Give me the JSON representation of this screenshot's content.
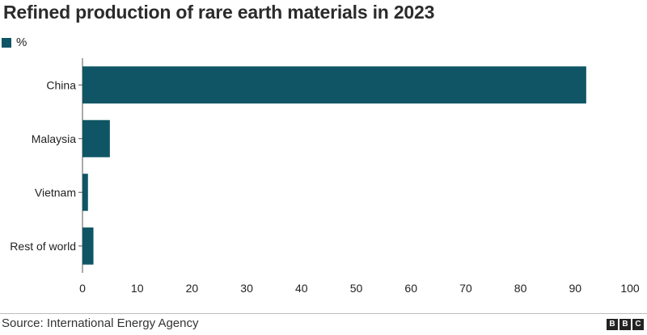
{
  "chart_data": {
    "type": "bar",
    "orientation": "horizontal",
    "title": "Refined production of rare earth materials in 2023",
    "legend": {
      "label": "%",
      "placement": "top-left"
    },
    "categories": [
      "China",
      "Malaysia",
      "Vietnam",
      "Rest of world"
    ],
    "series": [
      {
        "name": "%",
        "values": [
          92,
          5,
          1,
          2
        ]
      }
    ],
    "xlim": [
      0,
      100
    ],
    "xticks": [
      0,
      10,
      20,
      30,
      40,
      50,
      60,
      70,
      80,
      90,
      100
    ],
    "grid": false,
    "bar_color": "#0f5565"
  },
  "footer": {
    "source": "Source: International Energy Agency",
    "logo_letters": [
      "B",
      "B",
      "C"
    ]
  }
}
